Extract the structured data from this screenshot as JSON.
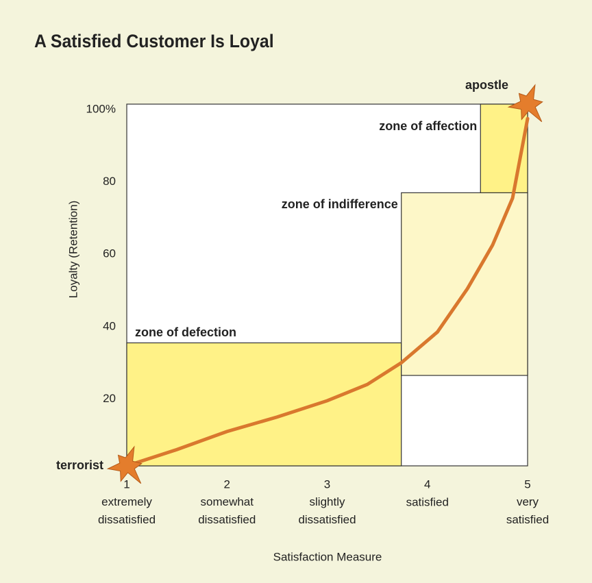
{
  "chart_data": {
    "type": "zones",
    "title": "A Satisfied Customer Is Loyal",
    "y_label": "Loyalty (Retention)",
    "x_label": "Satisfaction Measure",
    "xlim": [
      1,
      5
    ],
    "ylim": [
      0,
      100
    ],
    "xticks": [
      1,
      2,
      3,
      4,
      5
    ],
    "x_descriptions": [
      "extremely dissatisfied",
      "somewhat dissatisfied",
      "slightly dissatisfied",
      "satisfied",
      "very satisfied"
    ],
    "yticks": [
      20,
      40,
      60,
      80,
      {
        "value": 100,
        "label": "100%"
      }
    ],
    "zones": [
      {
        "name": "zone of defection",
        "x": [
          1,
          3.74
        ],
        "y": [
          0,
          34
        ],
        "color": "#fff287"
      },
      {
        "name": "zone of indifference",
        "x": [
          3.74,
          5
        ],
        "y": [
          25,
          75.5
        ],
        "color": "#fdf7c8"
      },
      {
        "name": "zone of affection",
        "x": [
          4.53,
          5
        ],
        "y": [
          75.5,
          100
        ],
        "color": "#fff287"
      }
    ],
    "curve": {
      "color": "#d9782e",
      "x": [
        1,
        1.5,
        2,
        2.5,
        3,
        3.4,
        3.74,
        4.1,
        4.4,
        4.65,
        4.85,
        5
      ],
      "y": [
        0,
        4.5,
        9.5,
        13.5,
        18,
        22.5,
        28.5,
        37,
        49,
        61,
        74,
        96
      ]
    },
    "points": [
      {
        "label": "terrorist",
        "x": 1,
        "y": 0
      },
      {
        "label": "apostle",
        "x": 5,
        "y": 100
      }
    ]
  }
}
